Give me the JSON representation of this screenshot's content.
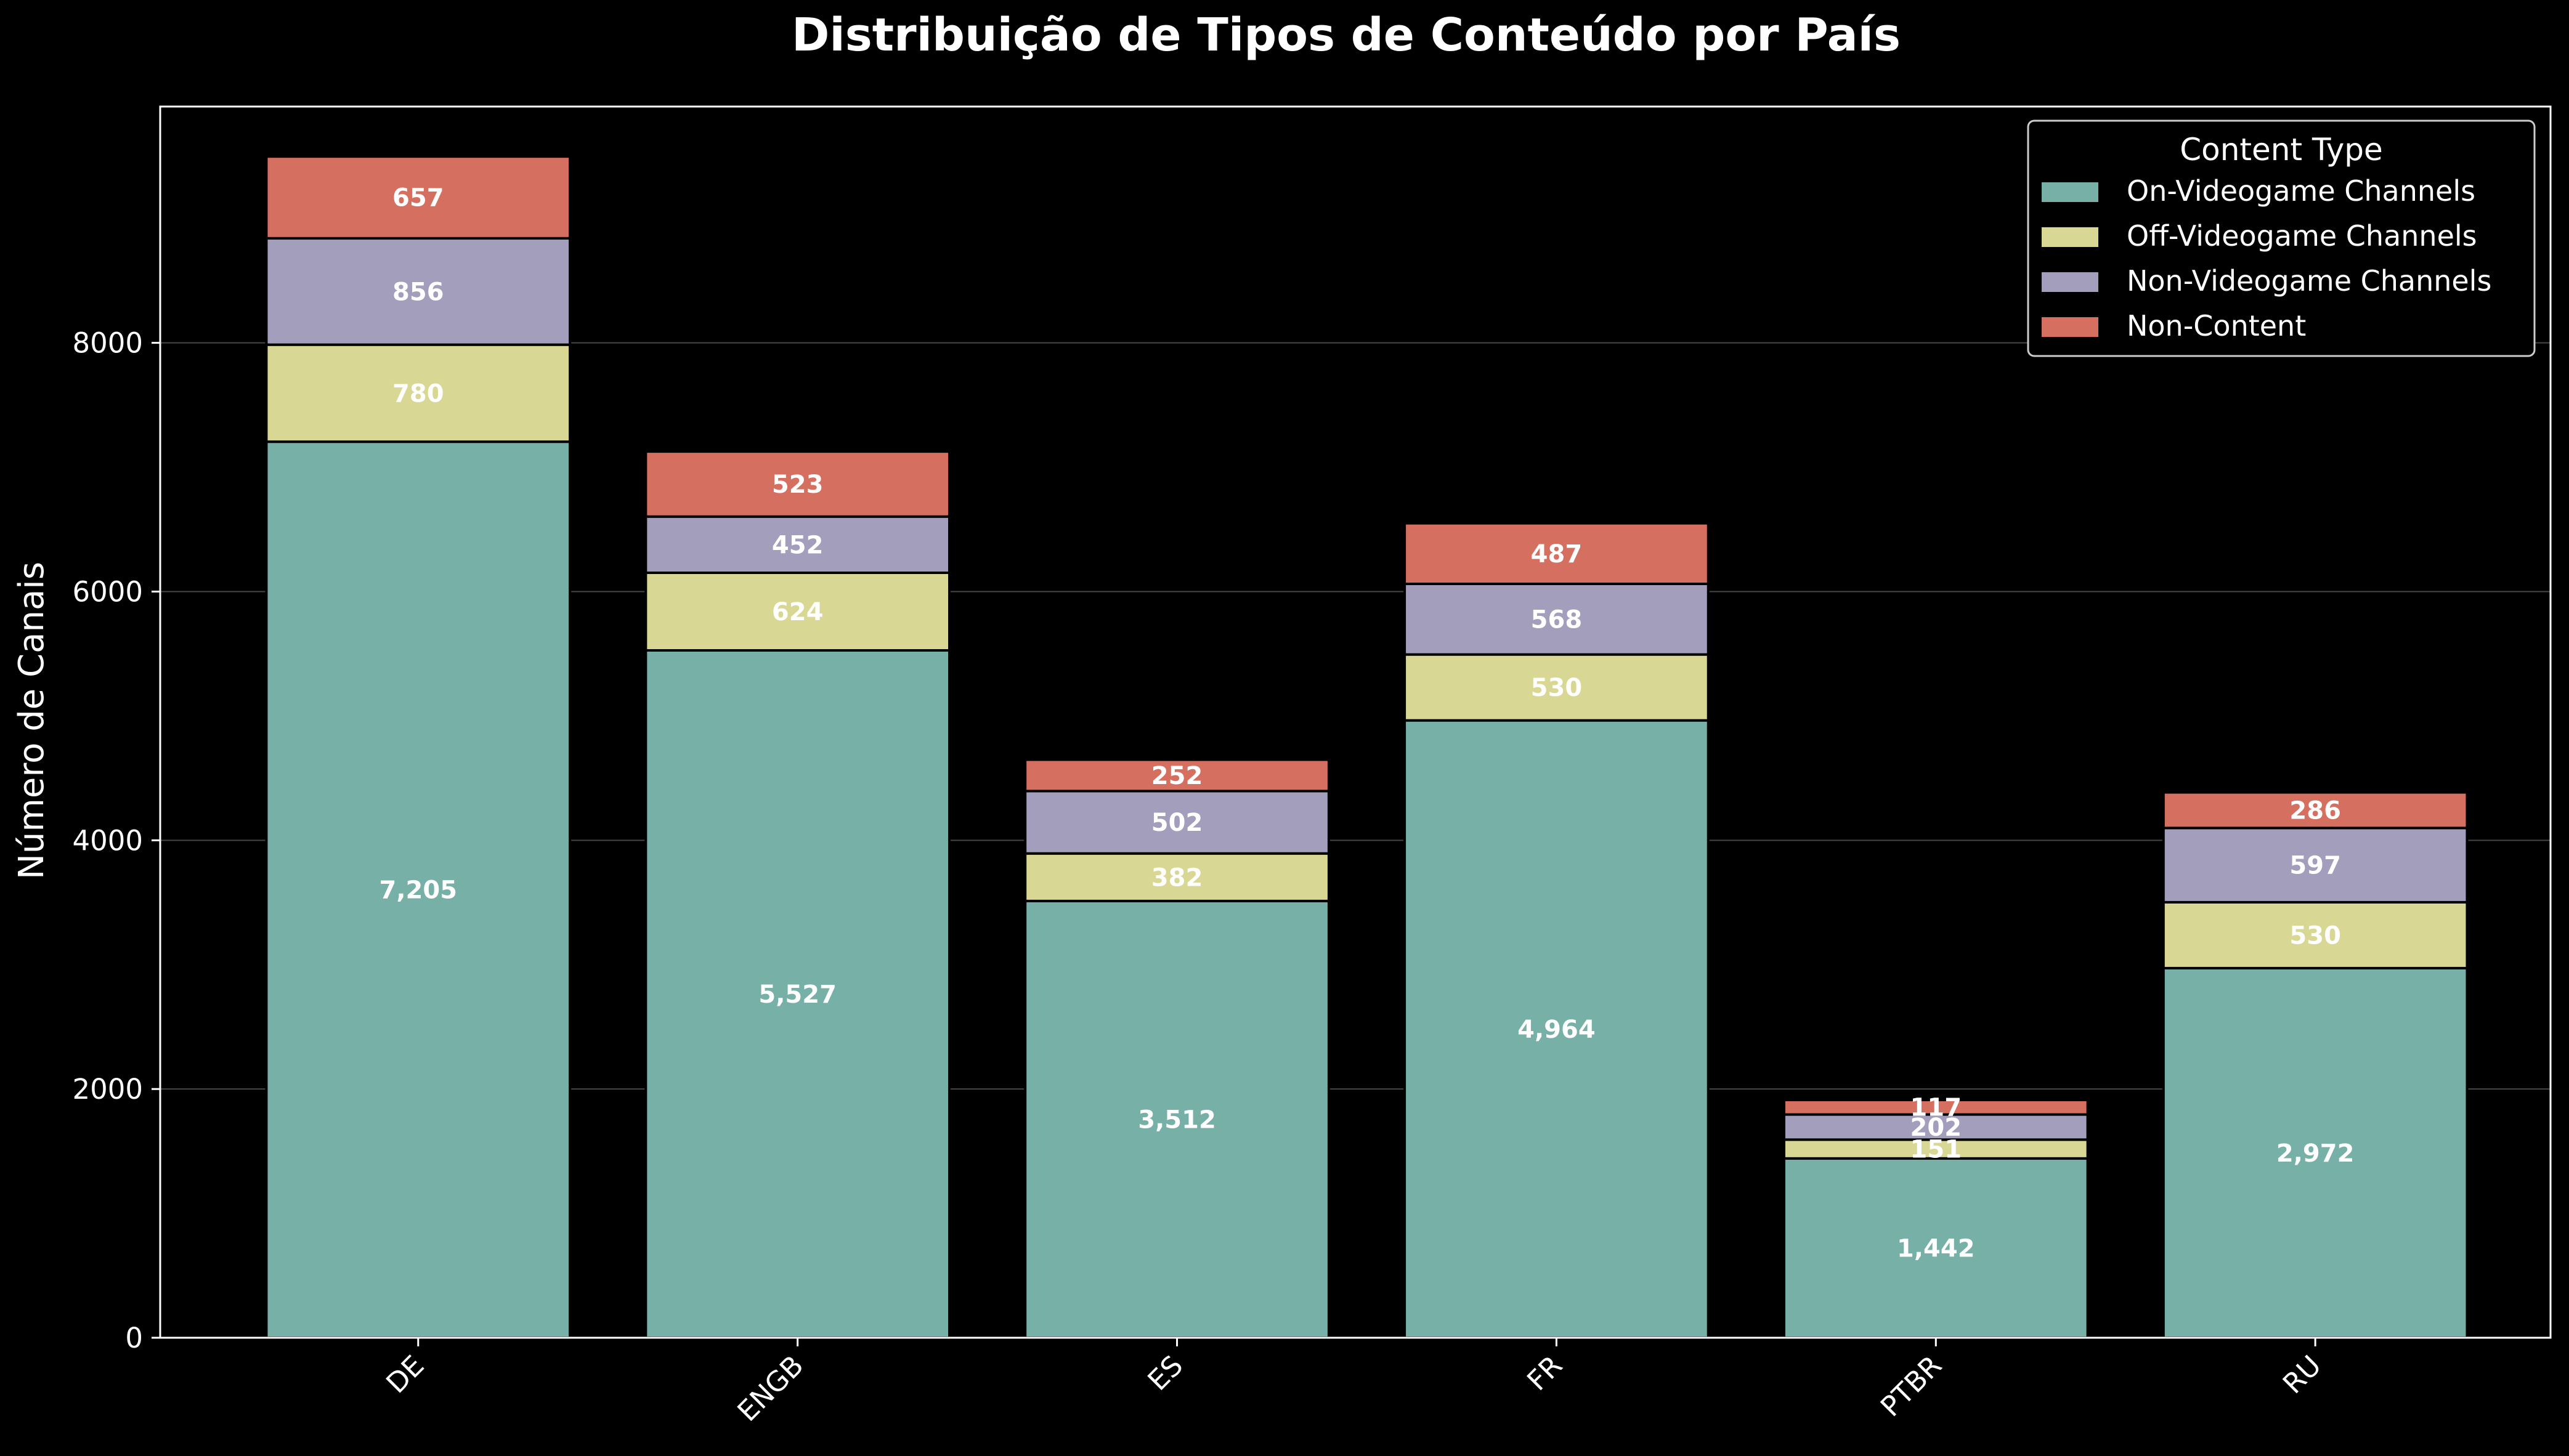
{
  "chart_data": {
    "type": "bar",
    "stacked": true,
    "title": "Distribuição de Tipos de Conteúdo por País",
    "xlabel": "",
    "ylabel": "Número de Canais",
    "ylim": [
      0,
      9900
    ],
    "yticks": [
      0,
      2000,
      4000,
      6000,
      8000
    ],
    "grid": true,
    "legend_title": "Content Type",
    "legend_position": "top-right",
    "categories": [
      "DE",
      "ENGB",
      "ES",
      "FR",
      "PTBR",
      "RU"
    ],
    "series": [
      {
        "name": "On-Videogame Channels",
        "color": "#76b0a6",
        "values": [
          7205,
          5527,
          3512,
          4964,
          1442,
          2972
        ]
      },
      {
        "name": "Off-Videogame Channels",
        "color": "#d8d894",
        "values": [
          780,
          624,
          382,
          530,
          151,
          530
        ]
      },
      {
        "name": "Non-Videogame Channels",
        "color": "#a29ebc",
        "values": [
          856,
          452,
          502,
          568,
          202,
          597
        ]
      },
      {
        "name": "Non-Content",
        "color": "#d56f60",
        "values": [
          657,
          523,
          252,
          487,
          117,
          286
        ]
      }
    ],
    "background_color": "#000000",
    "text_color": "#ffffff"
  }
}
